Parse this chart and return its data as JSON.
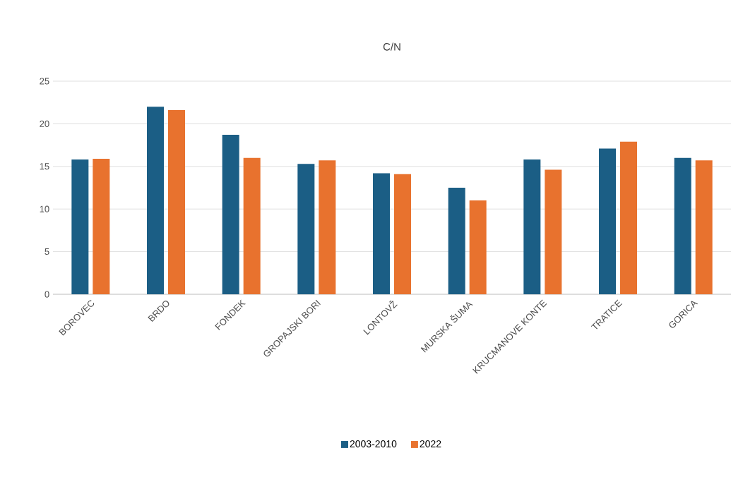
{
  "chart_data": {
    "type": "bar",
    "title": "C/N",
    "categories": [
      "BOROVEC",
      "BRDO",
      "FONDEK",
      "GROPAJSKI BORI",
      "LONTOVŽ",
      "MURSKA ŠUMA",
      "KRUCMANOVE KONTE",
      "TRATICE",
      "GORICA"
    ],
    "series": [
      {
        "name": "2003-2010",
        "color": "#1b5e85",
        "values": [
          15.8,
          22.0,
          18.7,
          15.3,
          14.2,
          12.5,
          15.8,
          17.1,
          16.0
        ]
      },
      {
        "name": "2022",
        "color": "#e8722e",
        "values": [
          15.9,
          21.6,
          16.0,
          15.7,
          14.1,
          11.0,
          14.6,
          17.9,
          15.7
        ]
      }
    ],
    "ylim": [
      0,
      25
    ],
    "yticks": [
      0,
      5,
      10,
      15,
      20,
      25
    ],
    "grid": "y",
    "legend": "bottom"
  }
}
